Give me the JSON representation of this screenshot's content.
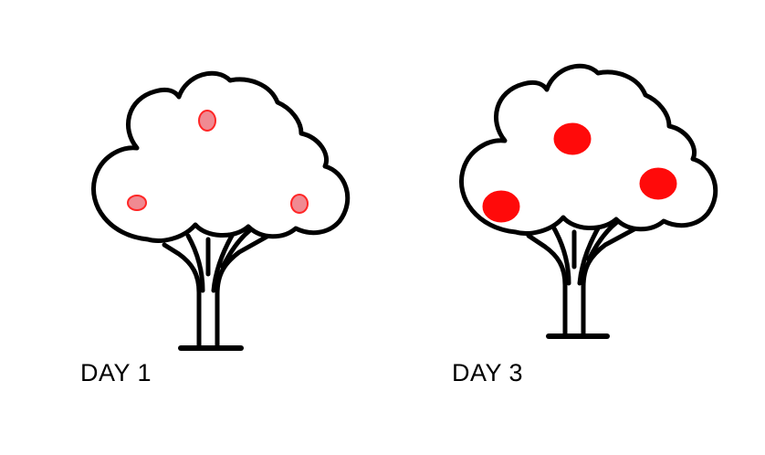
{
  "panels": [
    {
      "label": "DAY 1",
      "fruit_color": "#f08a92",
      "fruit_stroke": "#ff2626"
    },
    {
      "label": "DAY 3",
      "fruit_color": "#ff0a0a",
      "fruit_stroke": "#ff0a0a"
    }
  ],
  "icons": {
    "tree": "tree-icon",
    "fruit": "fruit-icon"
  }
}
